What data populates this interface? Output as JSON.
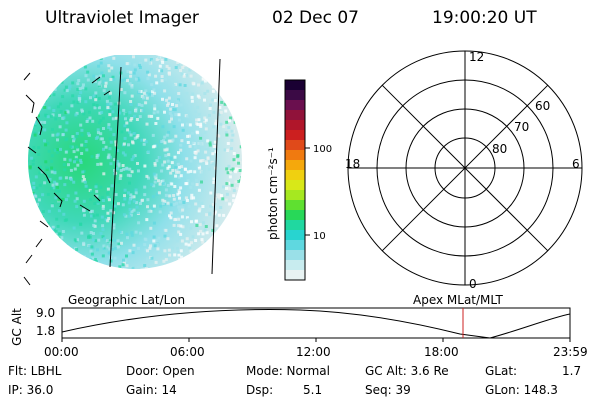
{
  "header": {
    "instrument": "Ultraviolet Imager",
    "date": "02 Dec 07",
    "time": "19:00:20 UT"
  },
  "image_panel": {
    "label": "Geographic Lat/Lon"
  },
  "colorbar": {
    "unit_label": "photon cm⁻²s⁻¹",
    "ticks": [
      "100",
      "10"
    ],
    "colors": [
      "#1a0033",
      "#3b0a45",
      "#6a0f4e",
      "#90123a",
      "#b0162a",
      "#cc1f1f",
      "#e04a1a",
      "#f07a10",
      "#f5a80c",
      "#f0d010",
      "#d8e818",
      "#a6e820",
      "#5fe030",
      "#28d858",
      "#20d8a0",
      "#28d4d0",
      "#5fd8e0",
      "#9ae0e8",
      "#c8ecef",
      "#e8f3f3"
    ]
  },
  "polar_plot": {
    "label": "Apex  MLat/MLT",
    "mlt_labels": {
      "top": "12",
      "bottom": "0",
      "left": "18",
      "right": "6"
    },
    "lat_labels": [
      "60",
      "70",
      "80"
    ]
  },
  "altitude_track": {
    "ylabel": "GC Alt",
    "yticks": [
      "9.0",
      "1.8"
    ],
    "xticks": [
      "00:00",
      "06:00",
      "12:00",
      "18:00",
      "23:59"
    ]
  },
  "info": {
    "row1": [
      "Flt: LBHL",
      "Door: Open",
      "Mode: Normal",
      "GC Alt: 3.6 Re",
      "GLat:",
      "1.7"
    ],
    "row2": [
      "IP: 36.0",
      "Gain: 14",
      "Dsp:",
      "5.1",
      "Seq: 39",
      "GLon: 148.3"
    ]
  }
}
